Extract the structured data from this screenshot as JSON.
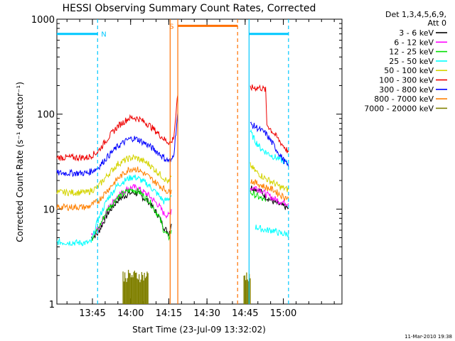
{
  "chart_data": {
    "type": "line",
    "title": "HESSI Observing Summary Count Rates, Corrected",
    "xlabel": "Start Time (23-Jul-09 13:32:02)",
    "ylabel": "Corrected Count Rate (s⁻¹ detector⁻¹)",
    "footer": "11-Mar-2010 19:38",
    "x_unit": "minutes after 13:32:02",
    "xlim": [
      0,
      112
    ],
    "ylim": [
      1,
      1000
    ],
    "y_scale": "log",
    "x_ticks": [
      {
        "x": 13.97,
        "label": "13:45"
      },
      {
        "x": 28.97,
        "label": "14:00"
      },
      {
        "x": 43.97,
        "label": "14:15"
      },
      {
        "x": 58.97,
        "label": "14:30"
      },
      {
        "x": 73.97,
        "label": "14:45"
      },
      {
        "x": 88.97,
        "label": "15:00"
      }
    ],
    "y_ticks": [
      {
        "y": 1,
        "label": "1"
      },
      {
        "y": 10,
        "label": "10"
      },
      {
        "y": 100,
        "label": "100"
      },
      {
        "y": 1000,
        "label": "1000"
      }
    ],
    "legend": {
      "placement": "right",
      "header": [
        "Det 1,3,4,5,6,9,",
        "Att 0"
      ],
      "entries": [
        {
          "label": "3 - 6 keV",
          "color": "#000000"
        },
        {
          "label": "6 - 12 keV",
          "color": "#ff00ff"
        },
        {
          "label": "12 - 25 keV",
          "color": "#00e000"
        },
        {
          "label": "25 - 50 keV",
          "color": "#00ffff"
        },
        {
          "label": "50 - 100 keV",
          "color": "#d4d400"
        },
        {
          "label": "100 - 300 keV",
          "color": "#ee0000"
        },
        {
          "label": "300 - 800 keV",
          "color": "#0000ff"
        },
        {
          "label": "800 - 7000 keV",
          "color": "#ff8000"
        },
        {
          "label": "7000 - 20000 keV",
          "color": "#808000"
        }
      ]
    },
    "annotations": [
      {
        "label": "N",
        "color": "#00c8ff",
        "x_start": 0,
        "x_end": 16.0,
        "y": 700
      },
      {
        "label": "S",
        "color": "#ff7000",
        "x_start": 47.5,
        "x_end": 71.0,
        "y": 850
      },
      {
        "label": "",
        "color": "#00c8ff",
        "x_start": 75.5,
        "x_end": 91.0,
        "y": 700
      }
    ],
    "vlines": [
      {
        "x": 16.0,
        "color": "#00c8ff",
        "style": "dashed"
      },
      {
        "x": 44.5,
        "color": "#ff7000",
        "style": "solid"
      },
      {
        "x": 47.5,
        "color": "#ff7000",
        "style": "solid"
      },
      {
        "x": 71.0,
        "color": "#ff7000",
        "style": "dashed"
      },
      {
        "x": 75.5,
        "color": "#00c8ff",
        "style": "solid"
      },
      {
        "x": 91.0,
        "color": "#00c8ff",
        "style": "dashed"
      }
    ],
    "series": [
      {
        "name": "3 - 6 keV",
        "color": "#000000",
        "segments": [
          [
            [
              13.5,
              5.0
            ],
            [
              16,
              5.5
            ],
            [
              20,
              9
            ],
            [
              24,
              12.5
            ],
            [
              28,
              14.5
            ],
            [
              30,
              15
            ],
            [
              32,
              14.5
            ],
            [
              36,
              12
            ],
            [
              40,
              8.5
            ],
            [
              42,
              6.5
            ],
            [
              44,
              5.5
            ],
            [
              45,
              7
            ]
          ],
          [
            [
              76,
              17
            ],
            [
              78,
              16.5
            ],
            [
              80,
              15.5
            ],
            [
              82,
              13.5
            ],
            [
              85,
              12
            ],
            [
              88,
              11
            ],
            [
              91,
              10.2
            ]
          ]
        ]
      },
      {
        "name": "6 - 12 keV",
        "color": "#ff00ff",
        "segments": [
          [
            [
              13.5,
              5.2
            ],
            [
              16,
              6
            ],
            [
              20,
              10
            ],
            [
              24,
              14
            ],
            [
              28,
              16.5
            ],
            [
              30,
              17
            ],
            [
              32,
              16.5
            ],
            [
              36,
              14
            ],
            [
              40,
              11
            ],
            [
              42,
              9
            ],
            [
              44,
              8.5
            ],
            [
              45,
              10
            ]
          ],
          [
            [
              76,
              16.5
            ],
            [
              78,
              17
            ],
            [
              80,
              16
            ],
            [
              82,
              14.5
            ],
            [
              85,
              13
            ],
            [
              88,
              12
            ],
            [
              91,
              11.5
            ]
          ]
        ]
      },
      {
        "name": "12 - 25 keV",
        "color": "#00e000",
        "segments": [
          [
            [
              13.5,
              4.8
            ],
            [
              16,
              6
            ],
            [
              20,
              10
            ],
            [
              24,
              13.5
            ],
            [
              28,
              15.5
            ],
            [
              30,
              16
            ],
            [
              32,
              15.5
            ],
            [
              36,
              12.5
            ],
            [
              40,
              8.5
            ],
            [
              42,
              6
            ],
            [
              44,
              5
            ],
            [
              45,
              6
            ]
          ],
          [
            [
              76,
              15
            ],
            [
              78,
              14
            ],
            [
              80,
              13
            ],
            [
              82,
              12
            ]
          ]
        ]
      },
      {
        "name": "25 - 50 keV",
        "color": "#00ffff",
        "segments": [
          [
            [
              0,
              4.5
            ],
            [
              12,
              4.4
            ],
            [
              13.5,
              4.5
            ],
            [
              16,
              7.5
            ],
            [
              20,
              13
            ],
            [
              24,
              18
            ],
            [
              28,
              21
            ],
            [
              30,
              22
            ],
            [
              32,
              21
            ],
            [
              36,
              18
            ],
            [
              40,
              14
            ],
            [
              42,
              12
            ],
            [
              44,
              13
            ],
            [
              45,
              14
            ]
          ],
          [
            [
              76,
              65
            ],
            [
              78,
              52
            ],
            [
              80,
              44
            ],
            [
              82,
              40
            ],
            [
              85,
              36
            ],
            [
              88,
              33
            ],
            [
              91,
              30
            ]
          ],
          [
            [
              78,
              6.5
            ],
            [
              82,
              6
            ],
            [
              85,
              6
            ],
            [
              88,
              5.5
            ],
            [
              91,
              5.5
            ]
          ]
        ]
      },
      {
        "name": "50 - 100 keV",
        "color": "#d4d400",
        "segments": [
          [
            [
              0,
              15
            ],
            [
              12,
              15
            ],
            [
              16,
              17
            ],
            [
              20,
              23
            ],
            [
              24,
              30
            ],
            [
              28,
              34
            ],
            [
              30,
              35
            ],
            [
              32,
              34
            ],
            [
              36,
              30
            ],
            [
              40,
              24
            ],
            [
              44,
              19
            ],
            [
              45,
              22
            ]
          ],
          [
            [
              76,
              29
            ],
            [
              78,
              25
            ],
            [
              80,
              23
            ],
            [
              82,
              21
            ],
            [
              85,
              19
            ],
            [
              88,
              17
            ],
            [
              91,
              16
            ]
          ]
        ]
      },
      {
        "name": "100 - 300 keV",
        "color": "#ee0000",
        "segments": [
          [
            [
              0,
              35
            ],
            [
              12,
              35
            ],
            [
              16,
              40
            ],
            [
              20,
              56
            ],
            [
              24,
              75
            ],
            [
              28,
              90
            ],
            [
              30,
              92
            ],
            [
              32,
              90
            ],
            [
              36,
              78
            ],
            [
              40,
              62
            ],
            [
              43,
              52
            ],
            [
              45,
              50
            ],
            [
              46,
              60
            ],
            [
              47.5,
              160
            ]
          ],
          [
            [
              76,
              190
            ],
            [
              80,
              190
            ],
            [
              82,
              180
            ],
            [
              82.5,
              78
            ],
            [
              85,
              64
            ],
            [
              88,
              50
            ],
            [
              91,
              40
            ]
          ]
        ]
      },
      {
        "name": "300 - 800 keV",
        "color": "#0000ff",
        "segments": [
          [
            [
              0,
              24
            ],
            [
              12,
              24
            ],
            [
              16,
              27
            ],
            [
              20,
              36
            ],
            [
              24,
              46
            ],
            [
              28,
              54
            ],
            [
              30,
              56
            ],
            [
              32,
              54
            ],
            [
              36,
              47
            ],
            [
              40,
              39
            ],
            [
              43,
              33
            ],
            [
              45,
              32
            ],
            [
              46,
              40
            ],
            [
              47.5,
              105
            ]
          ],
          [
            [
              76,
              78
            ],
            [
              78,
              74
            ],
            [
              80,
              68
            ],
            [
              82,
              63
            ],
            [
              85,
              48
            ],
            [
              88,
              36
            ],
            [
              91,
              28
            ]
          ]
        ]
      },
      {
        "name": "800 - 7000 keV",
        "color": "#ff8000",
        "segments": [
          [
            [
              0,
              10.5
            ],
            [
              12,
              10.5
            ],
            [
              16,
              12
            ],
            [
              20,
              16
            ],
            [
              24,
              21
            ],
            [
              28,
              26
            ],
            [
              30,
              27
            ],
            [
              32,
              26
            ],
            [
              36,
              22
            ],
            [
              40,
              18
            ],
            [
              44,
              15
            ],
            [
              45,
              16
            ]
          ],
          [
            [
              76,
              20
            ],
            [
              78,
              19
            ],
            [
              80,
              18
            ],
            [
              82,
              17
            ],
            [
              85,
              16
            ],
            [
              88,
              14
            ],
            [
              91,
              13
            ]
          ]
        ]
      },
      {
        "name": "7000 - 20000 keV",
        "color": "#808000",
        "segments": [
          [
            [
              26,
              2.0
            ],
            [
              36,
              2.0
            ]
          ],
          [
            [
              73.5,
              2.0
            ],
            [
              76,
              2.0
            ]
          ]
        ]
      }
    ]
  }
}
